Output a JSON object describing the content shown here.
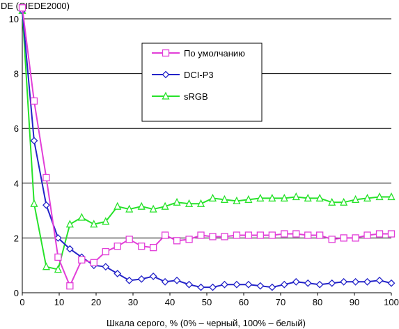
{
  "chart_data": {
    "type": "line",
    "ylabel": "DE (CIEDE2000)",
    "xlabel": "Шкала серого, % (0% – черный, 100% – белый)",
    "xlim": [
      0,
      100
    ],
    "ylim": [
      0,
      10
    ],
    "xticks": [
      0,
      10,
      20,
      30,
      40,
      50,
      60,
      70,
      80,
      90,
      100
    ],
    "yticks": [
      0,
      2,
      4,
      6,
      8,
      10
    ],
    "grid": "horizontal",
    "legend_position": "top-center",
    "x": [
      0,
      3.2,
      6.5,
      9.7,
      12.9,
      16.1,
      19.4,
      22.6,
      25.8,
      29.0,
      32.3,
      35.5,
      38.7,
      41.9,
      45.2,
      48.4,
      51.6,
      54.8,
      58.1,
      61.3,
      64.5,
      67.7,
      71.0,
      74.2,
      77.4,
      80.6,
      83.9,
      87.1,
      90.3,
      93.5,
      96.8,
      100
    ],
    "series": [
      {
        "name": "По умолчанию",
        "color": "#e23ed8",
        "marker": "square",
        "values": [
          10.4,
          7.0,
          4.2,
          1.3,
          0.25,
          1.2,
          1.1,
          1.5,
          1.7,
          1.95,
          1.7,
          1.65,
          2.1,
          1.9,
          1.95,
          2.1,
          2.05,
          2.05,
          2.1,
          2.1,
          2.1,
          2.1,
          2.15,
          2.15,
          2.1,
          2.1,
          1.95,
          2.0,
          2.0,
          2.1,
          2.15,
          2.15
        ]
      },
      {
        "name": "DCI-P3",
        "color": "#2323c8",
        "marker": "diamond",
        "values": [
          10.3,
          5.55,
          3.2,
          2.0,
          1.6,
          1.3,
          1.0,
          0.95,
          0.7,
          0.45,
          0.5,
          0.6,
          0.4,
          0.45,
          0.3,
          0.2,
          0.2,
          0.3,
          0.3,
          0.3,
          0.25,
          0.2,
          0.3,
          0.4,
          0.35,
          0.3,
          0.35,
          0.4,
          0.4,
          0.4,
          0.45,
          0.35
        ]
      },
      {
        "name": "sRGB",
        "color": "#27e22a",
        "marker": "triangle",
        "values": [
          10.3,
          3.25,
          0.95,
          0.85,
          2.5,
          2.75,
          2.5,
          2.6,
          3.15,
          3.05,
          3.15,
          3.05,
          3.15,
          3.3,
          3.25,
          3.25,
          3.45,
          3.4,
          3.35,
          3.4,
          3.45,
          3.45,
          3.45,
          3.5,
          3.45,
          3.45,
          3.3,
          3.3,
          3.4,
          3.45,
          3.5,
          3.5
        ]
      }
    ]
  }
}
